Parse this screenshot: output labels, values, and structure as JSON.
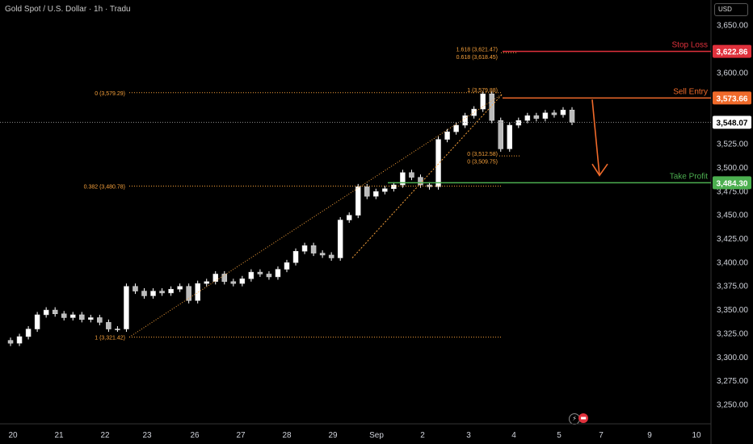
{
  "header": {
    "title": "Gold Spot / U.S. Dollar · 1h · Tradu",
    "currency": "USD"
  },
  "icons": {
    "lightning": "lightning-icon",
    "earnings": "event-flag-icon"
  },
  "colors": {
    "background": "#000000",
    "grid": "#1a1a1a",
    "axis_text": "#d1d4dc",
    "candle_up": "#ffffff",
    "candle_down": "#ffffff",
    "fib": "#f7a13b",
    "trend": "#f7a13b",
    "stop_loss": "#e0313c",
    "sell_entry": "#f06a2a",
    "take_profit": "#4caf50",
    "current_price_bg": "#ffffff"
  },
  "chart_data": {
    "type": "line",
    "title": "Gold Spot / U.S. Dollar · 1h · Tradu",
    "xlabel": "",
    "ylabel": "",
    "ylim": [
      3230,
      3660
    ],
    "y_ticks": [
      3250,
      3275,
      3300,
      3325,
      3350,
      3375,
      3400,
      3425,
      3450,
      3475,
      3500,
      3525,
      3550,
      3575,
      3600,
      3625,
      3650
    ],
    "y_tick_labels": [
      "3,250.00",
      "3,275.00",
      "3,300.00",
      "3,325.00",
      "3,350.00",
      "3,375.00",
      "3,400.00",
      "3,425.00",
      "3,450.00",
      "3,475.00",
      "3,500.00",
      "3,525.00",
      "3,550.00",
      "3,575.00",
      "3,600.00",
      "3,625.00",
      "3,650.00"
    ],
    "x_ticks": [
      "20",
      "21",
      "22",
      "23",
      "26",
      "27",
      "28",
      "29",
      "Sep",
      "2",
      "3",
      "4",
      "5",
      "7",
      "9",
      "10"
    ],
    "series": [
      {
        "values": [
          3318,
          3315,
          3322,
          3330,
          3345,
          3350,
          3346,
          3342,
          3345,
          3340,
          3342,
          3337,
          3330,
          3330,
          3375,
          3370,
          3365,
          3370,
          3368,
          3372,
          3375,
          3360,
          3378,
          3380,
          3388,
          3380,
          3378,
          3383,
          3390,
          3388,
          3385,
          3393,
          3400,
          3412,
          3418,
          3410,
          3408,
          3405,
          3445,
          3450,
          3480,
          3470,
          3475,
          3478,
          3482,
          3495,
          3490,
          3482,
          3480,
          3530,
          3538,
          3545,
          3555,
          3562,
          3578,
          3550,
          3520,
          3545,
          3550,
          3555,
          3552,
          3558,
          3556,
          3561,
          3548
        ]
      }
    ],
    "annotations": {
      "stop_loss": {
        "label": "Stop Loss",
        "value": 3622.86,
        "price_label": "3,622.86"
      },
      "sell_entry": {
        "label": "Sell Entry",
        "value": 3573.66,
        "price_label": "3,573.66"
      },
      "take_profit": {
        "label": "Take Profit",
        "value": 3484.3,
        "price_label": "3,484.30"
      },
      "current_price": {
        "value": 3548.07,
        "price_label": "3,548.07"
      }
    },
    "fib_left": [
      {
        "label": "0 (3,579.29)",
        "value": 3579.29
      },
      {
        "label": "0.382 (3,480.78)",
        "value": 3480.78
      },
      {
        "label": "1 (3,321.42)",
        "value": 3321.42
      }
    ],
    "fib_right": [
      {
        "label": "1.618 (3,621.47)",
        "value": 3621.47
      },
      {
        "label": "0.618 (3,618.45)",
        "value": 3618.45
      },
      {
        "label": "1 (3,579.88)",
        "value": 3579.88
      },
      {
        "label": "0 (3,512.58)",
        "value": 3512.58
      },
      {
        "label": "0 (3,509.75)",
        "value": 3509.75
      }
    ]
  }
}
